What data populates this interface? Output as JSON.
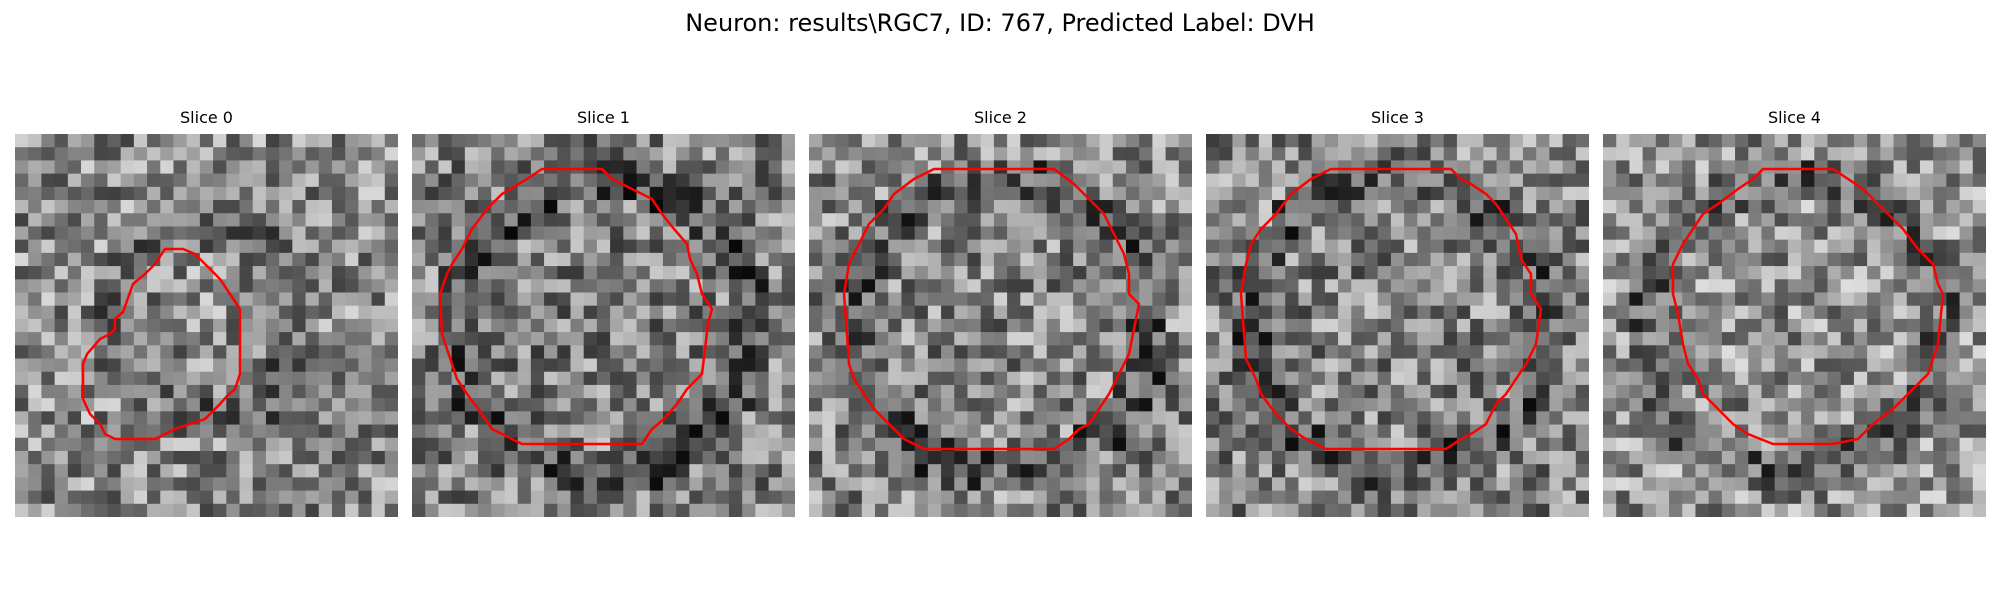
{
  "figure": {
    "title": "Neuron: results\\RGC7, ID: 767, Predicted Label: DVH"
  },
  "colors": {
    "contour": "#ff0000",
    "background": "#ffffff"
  },
  "panels": [
    {
      "title": "Slice 0",
      "seed": 11,
      "bias": 0.0
    },
    {
      "title": "Slice 1",
      "seed": 23,
      "bias": -0.05
    },
    {
      "title": "Slice 2",
      "seed": 37,
      "bias": -0.02
    },
    {
      "title": "Slice 3",
      "seed": 51,
      "bias": -0.03
    },
    {
      "title": "Slice 4",
      "seed": 67,
      "bias": 0.02
    }
  ]
}
